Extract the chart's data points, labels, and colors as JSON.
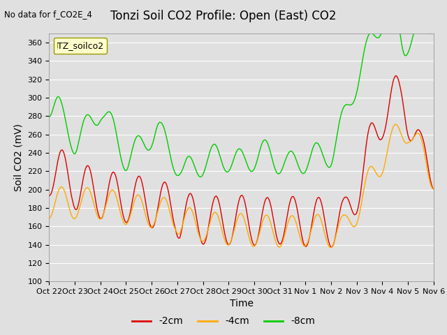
{
  "title": "Tonzi Soil CO2 Profile: Open (East) CO2",
  "subtitle": "No data for f_CO2E_4",
  "ylabel": "Soil CO2 (mV)",
  "xlabel": "Time",
  "legend_label": "TZ_soilco2",
  "series_labels": [
    "-2cm",
    "-4cm",
    "-8cm"
  ],
  "series_colors": [
    "#dd0000",
    "#ffaa00",
    "#00cc00"
  ],
  "ylim": [
    100,
    370
  ],
  "yticks": [
    100,
    120,
    140,
    160,
    180,
    200,
    220,
    240,
    260,
    280,
    300,
    320,
    340,
    360
  ],
  "xtick_labels": [
    "Oct 22",
    "Oct 23",
    "Oct 24",
    "Oct 25",
    "Oct 26",
    "Oct 27",
    "Oct 28",
    "Oct 29",
    "Oct 30",
    "Oct 31",
    "Nov 1",
    "Nov 2",
    "Nov 3",
    "Nov 4",
    "Nov 5",
    "Nov 6"
  ],
  "background_color": "#e0e0e0",
  "plot_background": "#e0e0e0",
  "legend_box_color": "#ffffcc",
  "legend_box_edge": "#999900",
  "title_fontsize": 12,
  "axis_fontsize": 10,
  "tick_fontsize": 8
}
